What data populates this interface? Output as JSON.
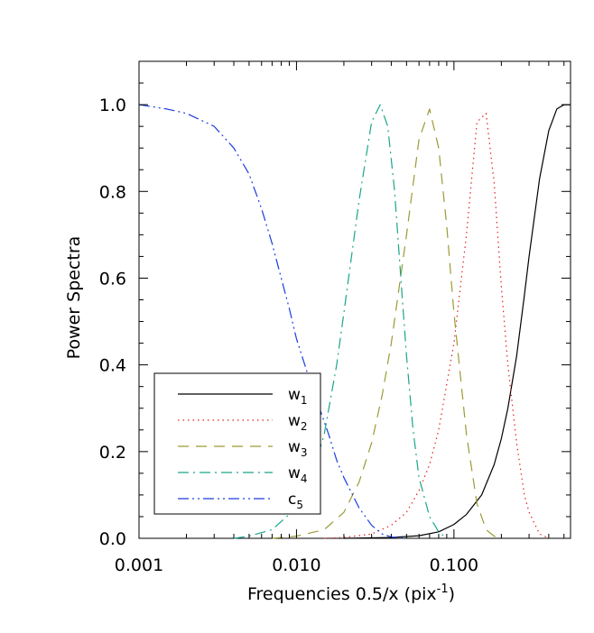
{
  "chart_data": {
    "type": "line",
    "title": "",
    "xlabel_main": "Frequencies 0.5/x (pix",
    "xlabel_sup": "-1",
    "xlabel_end": ")",
    "ylabel": "Power Spectra",
    "x_scale": "log",
    "xlim": [
      0.001,
      0.55
    ],
    "ylim": [
      0.0,
      1.1
    ],
    "x_ticks": [
      0.001,
      0.01,
      0.1
    ],
    "x_tick_labels": [
      "0.001",
      "0.010",
      "0.100"
    ],
    "y_ticks": [
      0.0,
      0.2,
      0.4,
      0.6,
      0.8,
      1.0
    ],
    "y_tick_labels": [
      "0.0",
      "0.2",
      "0.4",
      "0.6",
      "0.8",
      "1.0"
    ],
    "grid": false,
    "legend_position": "bottom-left",
    "series": [
      {
        "name": "w",
        "sub": "1",
        "color": "#000000",
        "dash": "solid",
        "x": [
          0.02,
          0.04,
          0.06,
          0.08,
          0.1,
          0.12,
          0.15,
          0.18,
          0.2,
          0.22,
          0.25,
          0.28,
          0.3,
          0.35,
          0.4,
          0.45,
          0.5,
          0.55
        ],
        "y": [
          0.0,
          0.002,
          0.006,
          0.015,
          0.032,
          0.055,
          0.1,
          0.17,
          0.23,
          0.3,
          0.42,
          0.56,
          0.65,
          0.83,
          0.94,
          0.99,
          1.0,
          1.0
        ]
      },
      {
        "name": "w",
        "sub": "2",
        "color": "#e0201e",
        "dash": "dotted",
        "x": [
          0.015,
          0.02,
          0.03,
          0.04,
          0.05,
          0.06,
          0.07,
          0.08,
          0.1,
          0.12,
          0.14,
          0.16,
          0.18,
          0.2,
          0.22,
          0.25,
          0.28,
          0.3,
          0.35,
          0.4
        ],
        "y": [
          0.0,
          0.002,
          0.01,
          0.03,
          0.06,
          0.11,
          0.17,
          0.25,
          0.45,
          0.7,
          0.96,
          0.98,
          0.82,
          0.58,
          0.4,
          0.22,
          0.1,
          0.06,
          0.01,
          0.0
        ]
      },
      {
        "name": "w",
        "sub": "3",
        "color": "#9b9a35",
        "dash": "dashed",
        "x": [
          0.007,
          0.01,
          0.015,
          0.02,
          0.025,
          0.03,
          0.035,
          0.04,
          0.05,
          0.06,
          0.07,
          0.08,
          0.09,
          0.1,
          0.12,
          0.14,
          0.16,
          0.18,
          0.2
        ],
        "y": [
          0.0,
          0.005,
          0.02,
          0.06,
          0.13,
          0.22,
          0.33,
          0.45,
          0.7,
          0.92,
          0.99,
          0.9,
          0.72,
          0.52,
          0.24,
          0.08,
          0.02,
          0.005,
          0.0
        ]
      },
      {
        "name": "w",
        "sub": "4",
        "color": "#1aa58a",
        "dash": "dashdot",
        "x": [
          0.004,
          0.005,
          0.007,
          0.01,
          0.012,
          0.015,
          0.018,
          0.02,
          0.025,
          0.03,
          0.034,
          0.038,
          0.042,
          0.046,
          0.05,
          0.055,
          0.06,
          0.07,
          0.08,
          0.09
        ],
        "y": [
          0.0,
          0.005,
          0.02,
          0.07,
          0.12,
          0.24,
          0.4,
          0.52,
          0.78,
          0.96,
          1.0,
          0.95,
          0.8,
          0.6,
          0.42,
          0.25,
          0.14,
          0.05,
          0.015,
          0.0
        ]
      },
      {
        "name": "c",
        "sub": "5",
        "color": "#1b3be0",
        "dash": "dashdotdot",
        "x": [
          0.001,
          0.0015,
          0.002,
          0.003,
          0.004,
          0.005,
          0.006,
          0.007,
          0.008,
          0.009,
          0.01,
          0.012,
          0.014,
          0.016,
          0.018,
          0.02,
          0.025,
          0.03,
          0.035,
          0.04,
          0.05
        ],
        "y": [
          1.0,
          0.99,
          0.98,
          0.95,
          0.9,
          0.84,
          0.76,
          0.68,
          0.6,
          0.53,
          0.46,
          0.37,
          0.3,
          0.24,
          0.18,
          0.14,
          0.07,
          0.03,
          0.01,
          0.003,
          0.0
        ]
      }
    ]
  }
}
